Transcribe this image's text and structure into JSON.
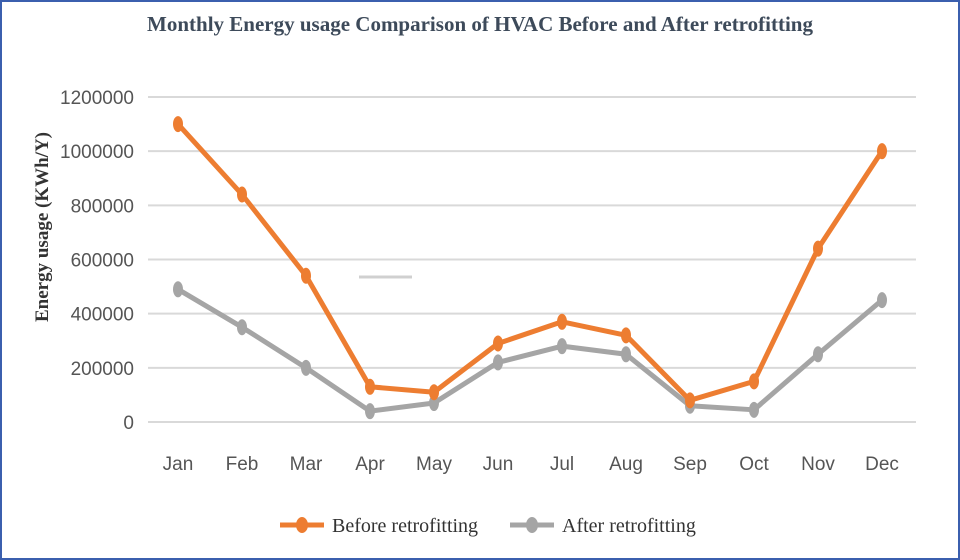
{
  "chart_data": {
    "type": "line",
    "title": "Monthly Energy usage Comparison of HVAC Before and After retrofitting",
    "xlabel": "",
    "ylabel": "Energy usage (KWh/Y)",
    "ylim": [
      0,
      1200000
    ],
    "yticks": [
      0,
      200000,
      400000,
      600000,
      800000,
      1000000,
      1200000
    ],
    "ytick_labels": [
      "0",
      "200000",
      "400000",
      "600000",
      "800000",
      "1000000",
      "1200000"
    ],
    "grid": true,
    "legend_position": "bottom",
    "categories": [
      "Jan",
      "Feb",
      "Mar",
      "Apr",
      "May",
      "Jun",
      "Jul",
      "Aug",
      "Sep",
      "Oct",
      "Nov",
      "Dec"
    ],
    "series": [
      {
        "name": "Before retrofitting",
        "color": "#ed7d31",
        "values": [
          1100000,
          840000,
          540000,
          130000,
          110000,
          290000,
          370000,
          320000,
          80000,
          150000,
          640000,
          1000000
        ]
      },
      {
        "name": "After retrofitting",
        "color": "#a5a5a5",
        "values": [
          490000,
          350000,
          200000,
          40000,
          70000,
          220000,
          280000,
          250000,
          60000,
          45000,
          250000,
          450000
        ]
      }
    ]
  }
}
